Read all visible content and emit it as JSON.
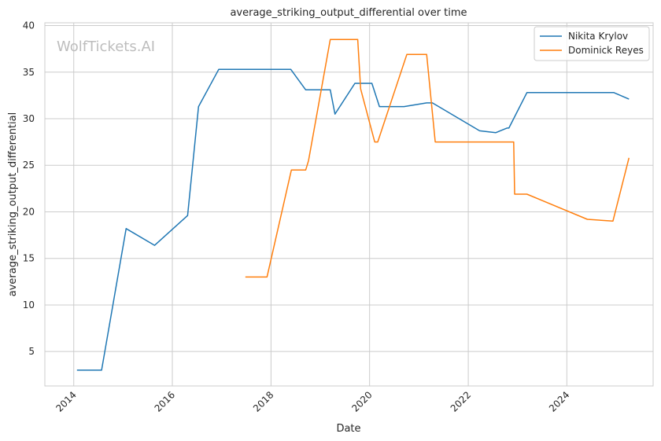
{
  "chart_data": {
    "type": "line",
    "title": "average_striking_output_differential over time",
    "xlabel": "Date",
    "ylabel": "average_striking_output_differential",
    "watermark": "WolfTickets.AI",
    "xlim": [
      "2013-06-01",
      "2025-10-01"
    ],
    "ylim": [
      1.3,
      40.3
    ],
    "x_ticks": [
      "2014",
      "2016",
      "2018",
      "2020",
      "2022",
      "2024"
    ],
    "y_ticks": [
      "5",
      "10",
      "15",
      "20",
      "25",
      "30",
      "35",
      "40"
    ],
    "grid": true,
    "legend": "top-right",
    "series": [
      {
        "name": "Nikita Krylov",
        "color": "#1f77b4",
        "x": [
          "2014-01-25",
          "2014-07-26",
          "2015-01-24",
          "2015-08-23",
          "2016-04-23",
          "2016-07-13",
          "2016-12-10",
          "2018-05-27",
          "2018-09-15",
          "2019-03-16",
          "2019-04-20",
          "2019-09-14",
          "2020-01-18",
          "2020-03-14",
          "2020-09-12",
          "2021-02-27",
          "2021-04-10",
          "2022-03-26",
          "2022-07-23",
          "2022-10-15",
          "2022-10-29",
          "2023-03-11",
          "2024-02-24",
          "2024-12-14",
          "2025-04-05"
        ],
        "values": [
          3.0,
          3.0,
          18.2,
          16.4,
          19.6,
          31.3,
          35.3,
          35.3,
          33.1,
          33.1,
          30.5,
          33.8,
          33.8,
          31.3,
          31.3,
          31.7,
          31.7,
          28.7,
          28.5,
          29.0,
          29.0,
          32.8,
          32.8,
          32.8,
          32.1
        ]
      },
      {
        "name": "Dominick Reyes",
        "color": "#ff7f0e",
        "x": [
          "2017-06-25",
          "2017-12-02",
          "2018-06-01",
          "2018-09-15",
          "2018-10-06",
          "2019-03-16",
          "2019-10-05",
          "2019-10-27",
          "2020-02-08",
          "2020-03-01",
          "2020-10-03",
          "2021-02-27",
          "2021-05-01",
          "2022-12-03",
          "2022-12-10",
          "2023-03-11",
          "2024-06-01",
          "2024-12-07",
          "2025-04-05"
        ],
        "values": [
          13.0,
          13.0,
          24.5,
          24.5,
          25.5,
          38.5,
          38.5,
          33.2,
          27.5,
          27.5,
          36.9,
          36.9,
          27.5,
          27.5,
          21.9,
          21.9,
          19.2,
          19.0,
          25.8
        ]
      }
    ]
  }
}
